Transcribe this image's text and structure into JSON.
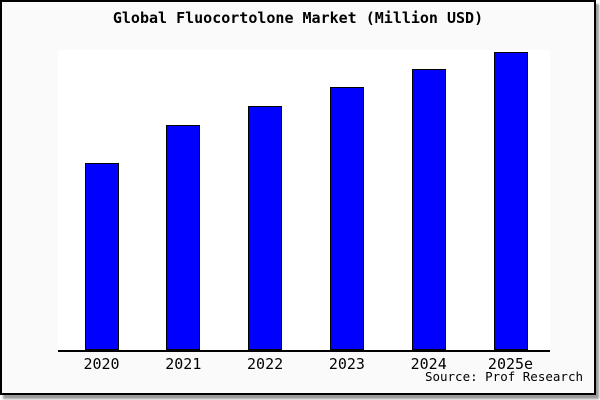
{
  "chart_data": {
    "type": "bar",
    "title": "Global Fluocortolone Market (Million USD)",
    "categories": [
      "2020",
      "2021",
      "2022",
      "2023",
      "2024",
      "2025e"
    ],
    "values": [
      62.8,
      75.5,
      81.9,
      88.3,
      94.3,
      100
    ],
    "values_note": "relative index estimated from bar heights; y-axis has no tick labels in the image (max bar 2025e = 100)",
    "xlabel": "",
    "ylabel": "",
    "y_axis_visible": false,
    "grid": false,
    "legend": false,
    "bar_color": "#0000ff",
    "bar_border_color": "#000000",
    "plot_background": "#ffffff",
    "card_background": "#fafafa",
    "source": "Source: Prof Research"
  }
}
